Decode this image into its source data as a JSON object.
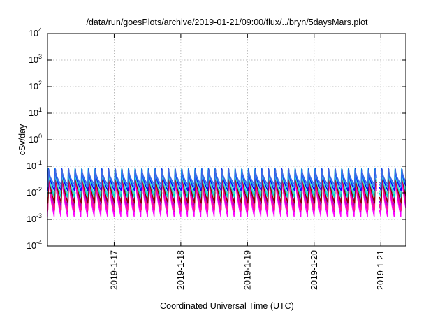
{
  "chart_data": {
    "type": "line",
    "title": "/data/run/goesPlots/archive/2019-01-21/09:00/flux/../bryn/5daysMars.plot",
    "xlabel": "Coordinated Universal Time (UTC)",
    "ylabel": "cSv/day",
    "yscale": "log",
    "ylim": [
      "1e-4",
      "1e4"
    ],
    "y_ticks": [
      {
        "base": "10",
        "exp": "-4",
        "value": 0.0001
      },
      {
        "base": "10",
        "exp": "-3",
        "value": 0.001
      },
      {
        "base": "10",
        "exp": "-2",
        "value": 0.01
      },
      {
        "base": "10",
        "exp": "-1",
        "value": 0.1
      },
      {
        "base": "10",
        "exp": "0",
        "value": 1
      },
      {
        "base": "10",
        "exp": "1",
        "value": 10
      },
      {
        "base": "10",
        "exp": "2",
        "value": 100
      },
      {
        "base": "10",
        "exp": "3",
        "value": 1000
      },
      {
        "base": "10",
        "exp": "4",
        "value": 10000
      }
    ],
    "xlim": [
      "2019-01-16T00:00",
      "2019-01-21T09:00"
    ],
    "x_ticks": [
      {
        "label": "2019-1-17",
        "value": "2019-01-17T00:00"
      },
      {
        "label": "2019-1-18",
        "value": "2019-01-18T00:00"
      },
      {
        "label": "2019-1-19",
        "value": "2019-01-19T00:00"
      },
      {
        "label": "2019-1-20",
        "value": "2019-01-20T00:00"
      },
      {
        "label": "2019-1-21",
        "value": "2019-01-21T00:00"
      }
    ],
    "grid": true,
    "legend": "none",
    "pattern": {
      "description": "sawtooth orbital cycles: sharp rise then decay",
      "cycles_per_day": 10,
      "peak_value": 0.1,
      "gap_start": "2019-01-20T22:30",
      "gap_end": "2019-01-20T23:30"
    },
    "series": [
      {
        "color": "#ff00ff",
        "peak": 0.1,
        "trough": 0.0013
      },
      {
        "color": "#cc00cc",
        "peak": 0.09,
        "trough": 0.0019
      },
      {
        "color": "#9400d3",
        "peak": 0.085,
        "trough": 0.003
      },
      {
        "color": "#ff1493",
        "peak": 0.08,
        "trough": 0.002
      },
      {
        "color": "#8b0000",
        "peak": 0.075,
        "trough": 0.004
      },
      {
        "color": "#00ced1",
        "peak": 0.11,
        "trough": 0.007
      },
      {
        "color": "#40e0d0",
        "peak": 0.07,
        "trough": 0.009
      },
      {
        "color": "#0000ff",
        "peak": 0.09,
        "trough": 0.012
      },
      {
        "color": "#1e90ff",
        "peak": 0.08,
        "trough": 0.016
      },
      {
        "color": "#4169e1",
        "peak": 0.075,
        "trough": 0.02
      }
    ]
  }
}
